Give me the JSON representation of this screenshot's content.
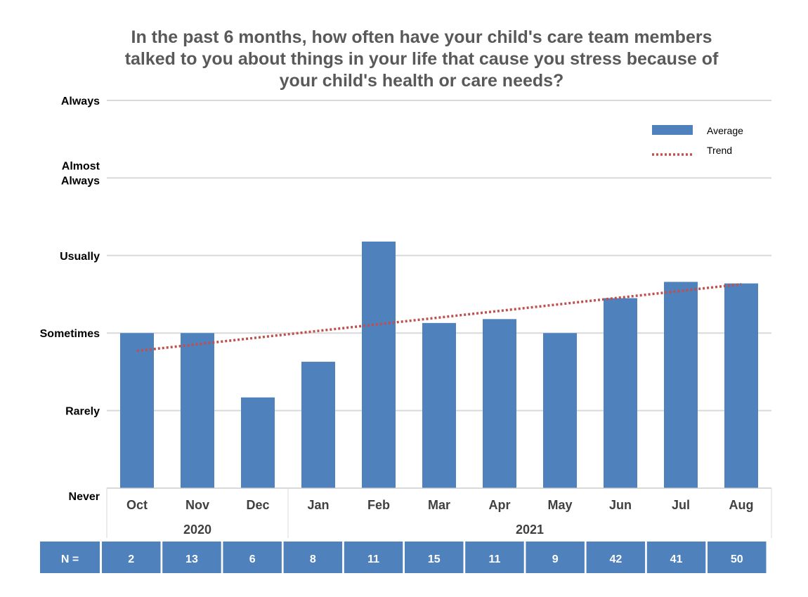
{
  "chart_data": {
    "type": "bar",
    "title": "In the past 6 months, how often have your child's care team members talked to you about things in your life that cause you stress because of your child's health or care needs?",
    "categories": [
      "Oct",
      "Nov",
      "Dec",
      "Jan",
      "Feb",
      "Mar",
      "Apr",
      "May",
      "Jun",
      "Jul",
      "Aug"
    ],
    "groups": [
      {
        "label": "2020",
        "categories": [
          "Oct",
          "Nov",
          "Dec"
        ]
      },
      {
        "label": "2021",
        "categories": [
          "Jan",
          "Feb",
          "Mar",
          "Apr",
          "May",
          "Jun",
          "Jul",
          "Aug"
        ]
      }
    ],
    "y_scale": {
      "min": 1,
      "max": 6,
      "tick_values": [
        1,
        2,
        3,
        4,
        5,
        6
      ]
    },
    "y_tick_labels": [
      "Never",
      "Rarely",
      "Sometimes",
      "Usually",
      "Almost Always",
      "Always"
    ],
    "series": [
      {
        "name": "Average",
        "values": [
          3.0,
          3.0,
          2.17,
          2.63,
          4.18,
          3.13,
          3.18,
          3.0,
          3.45,
          3.66,
          3.64
        ],
        "color": "#4f81bd"
      }
    ],
    "trend": {
      "name": "Trend",
      "start": 2.77,
      "end": 3.63,
      "color": "#c0504d",
      "style": "dotted"
    },
    "legend": {
      "position": "top-right",
      "items": [
        "Average",
        "Trend"
      ]
    },
    "n_row": {
      "label": "N =",
      "values": [
        "2",
        "13",
        "6",
        "8",
        "11",
        "15",
        "11",
        "9",
        "42",
        "41",
        "50"
      ],
      "color": "#4f81bd"
    },
    "grid": true
  }
}
